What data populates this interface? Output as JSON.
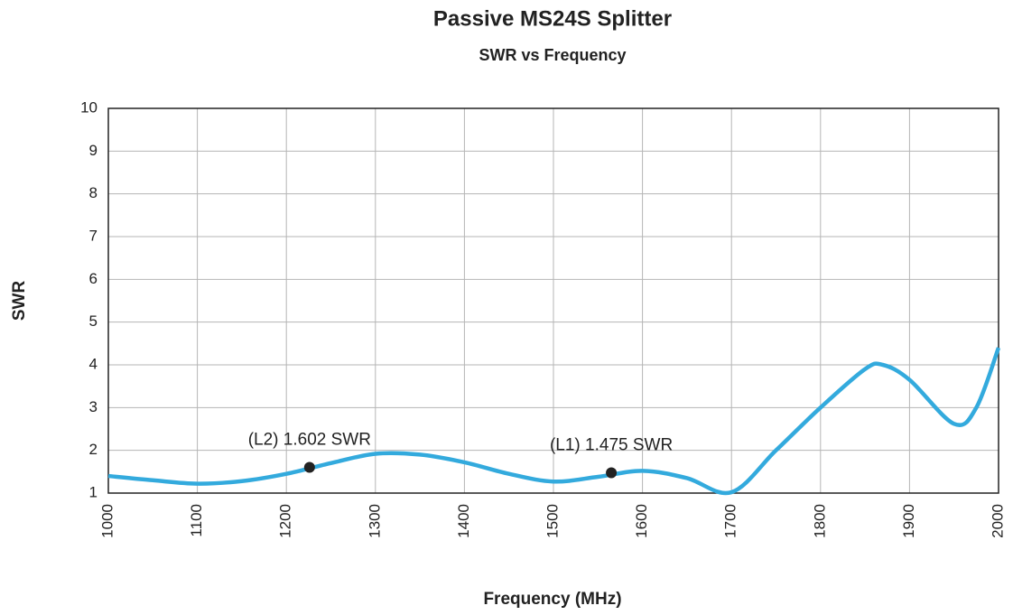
{
  "chart_data": {
    "type": "line",
    "title": "Passive MS24S Splitter",
    "subtitle": "SWR vs Frequency",
    "x_label": "Frequency (MHz)",
    "y_label": "SWR",
    "x": [
      1000,
      1050,
      1100,
      1150,
      1200,
      1250,
      1300,
      1350,
      1400,
      1450,
      1500,
      1550,
      1600,
      1650,
      1700,
      1750,
      1800,
      1850,
      1870,
      1900,
      1950,
      1975,
      2000
    ],
    "series": [
      {
        "name": "SWR",
        "color": "#33aadd",
        "values": [
          1.4,
          1.3,
          1.22,
          1.28,
          1.45,
          1.7,
          1.92,
          1.9,
          1.72,
          1.45,
          1.27,
          1.38,
          1.52,
          1.35,
          1.02,
          2.0,
          3.0,
          3.9,
          4.0,
          3.65,
          2.62,
          3.0,
          4.4
        ]
      }
    ],
    "annotations": [
      {
        "text": "(L2) 1.602 SWR",
        "x": 1226,
        "y": 1.602
      },
      {
        "text": "(L1) 1.475 SWR",
        "x": 1565,
        "y": 1.475
      }
    ],
    "marker_color": "#222222",
    "xlim": [
      1000,
      2000
    ],
    "xticks": [
      1000,
      1100,
      1200,
      1300,
      1400,
      1500,
      1600,
      1700,
      1800,
      1900,
      2000
    ],
    "ylim": [
      1,
      10
    ],
    "yticks": [
      1,
      2,
      3,
      4,
      5,
      6,
      7,
      8,
      9,
      10
    ],
    "grid": true
  }
}
